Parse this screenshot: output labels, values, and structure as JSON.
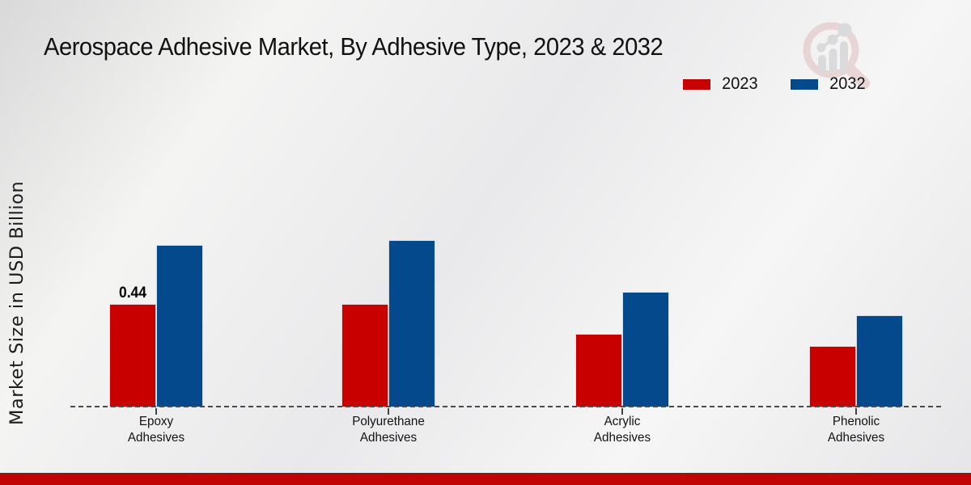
{
  "title": "Aerospace Adhesive Market, By Adhesive Type, 2023 & 2032",
  "y_axis_label": "Market Size in USD Billion",
  "legend": {
    "items": [
      {
        "label": "2023",
        "color": "#c80000"
      },
      {
        "label": "2032",
        "color": "#04498c"
      }
    ]
  },
  "logo": {
    "name": "magnifier-bar-chart-watermark-logo"
  },
  "chart_data": {
    "type": "bar",
    "title": "Aerospace Adhesive Market, By Adhesive Type, 2023 & 2032",
    "xlabel": "",
    "ylabel": "Market Size in USD Billion",
    "categories": [
      "Epoxy Adhesives",
      "Polyurethane Adhesives",
      "Acrylic Adhesives",
      "Phenolic Adhesives"
    ],
    "category_label_lines": [
      [
        "Epoxy",
        "Adhesives"
      ],
      [
        "Polyurethane",
        "Adhesives"
      ],
      [
        "Acrylic",
        "Adhesives"
      ],
      [
        "Phenolic",
        "Adhesives"
      ]
    ],
    "series": [
      {
        "name": "2023",
        "color": "#c80000",
        "values": [
          0.44,
          0.44,
          0.31,
          0.26
        ]
      },
      {
        "name": "2032",
        "color": "#04498c",
        "values": [
          0.69,
          0.71,
          0.49,
          0.39
        ]
      }
    ],
    "data_labels": [
      {
        "series": "2023",
        "category": "Epoxy Adhesives",
        "text": "0.44"
      }
    ],
    "ylim": [
      0,
      0.8
    ],
    "grid": false,
    "legend_position": "top-right",
    "baseline_style": "dashed",
    "colors": {
      "series_2023": "#c80000",
      "series_2032": "#04498c",
      "baseline": "#4a4a4a",
      "footer_bar": "#c20404"
    }
  },
  "footer": {
    "accent_color": "#c20404"
  }
}
